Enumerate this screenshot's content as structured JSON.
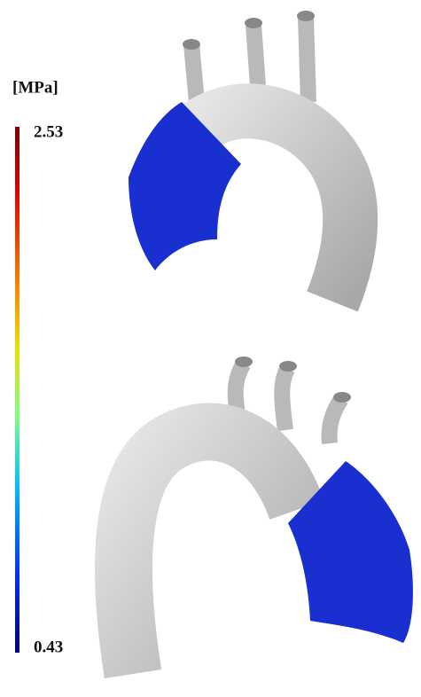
{
  "colorbar": {
    "title": "[MPa]",
    "max": 2.53,
    "min": 0.43
  }
}
